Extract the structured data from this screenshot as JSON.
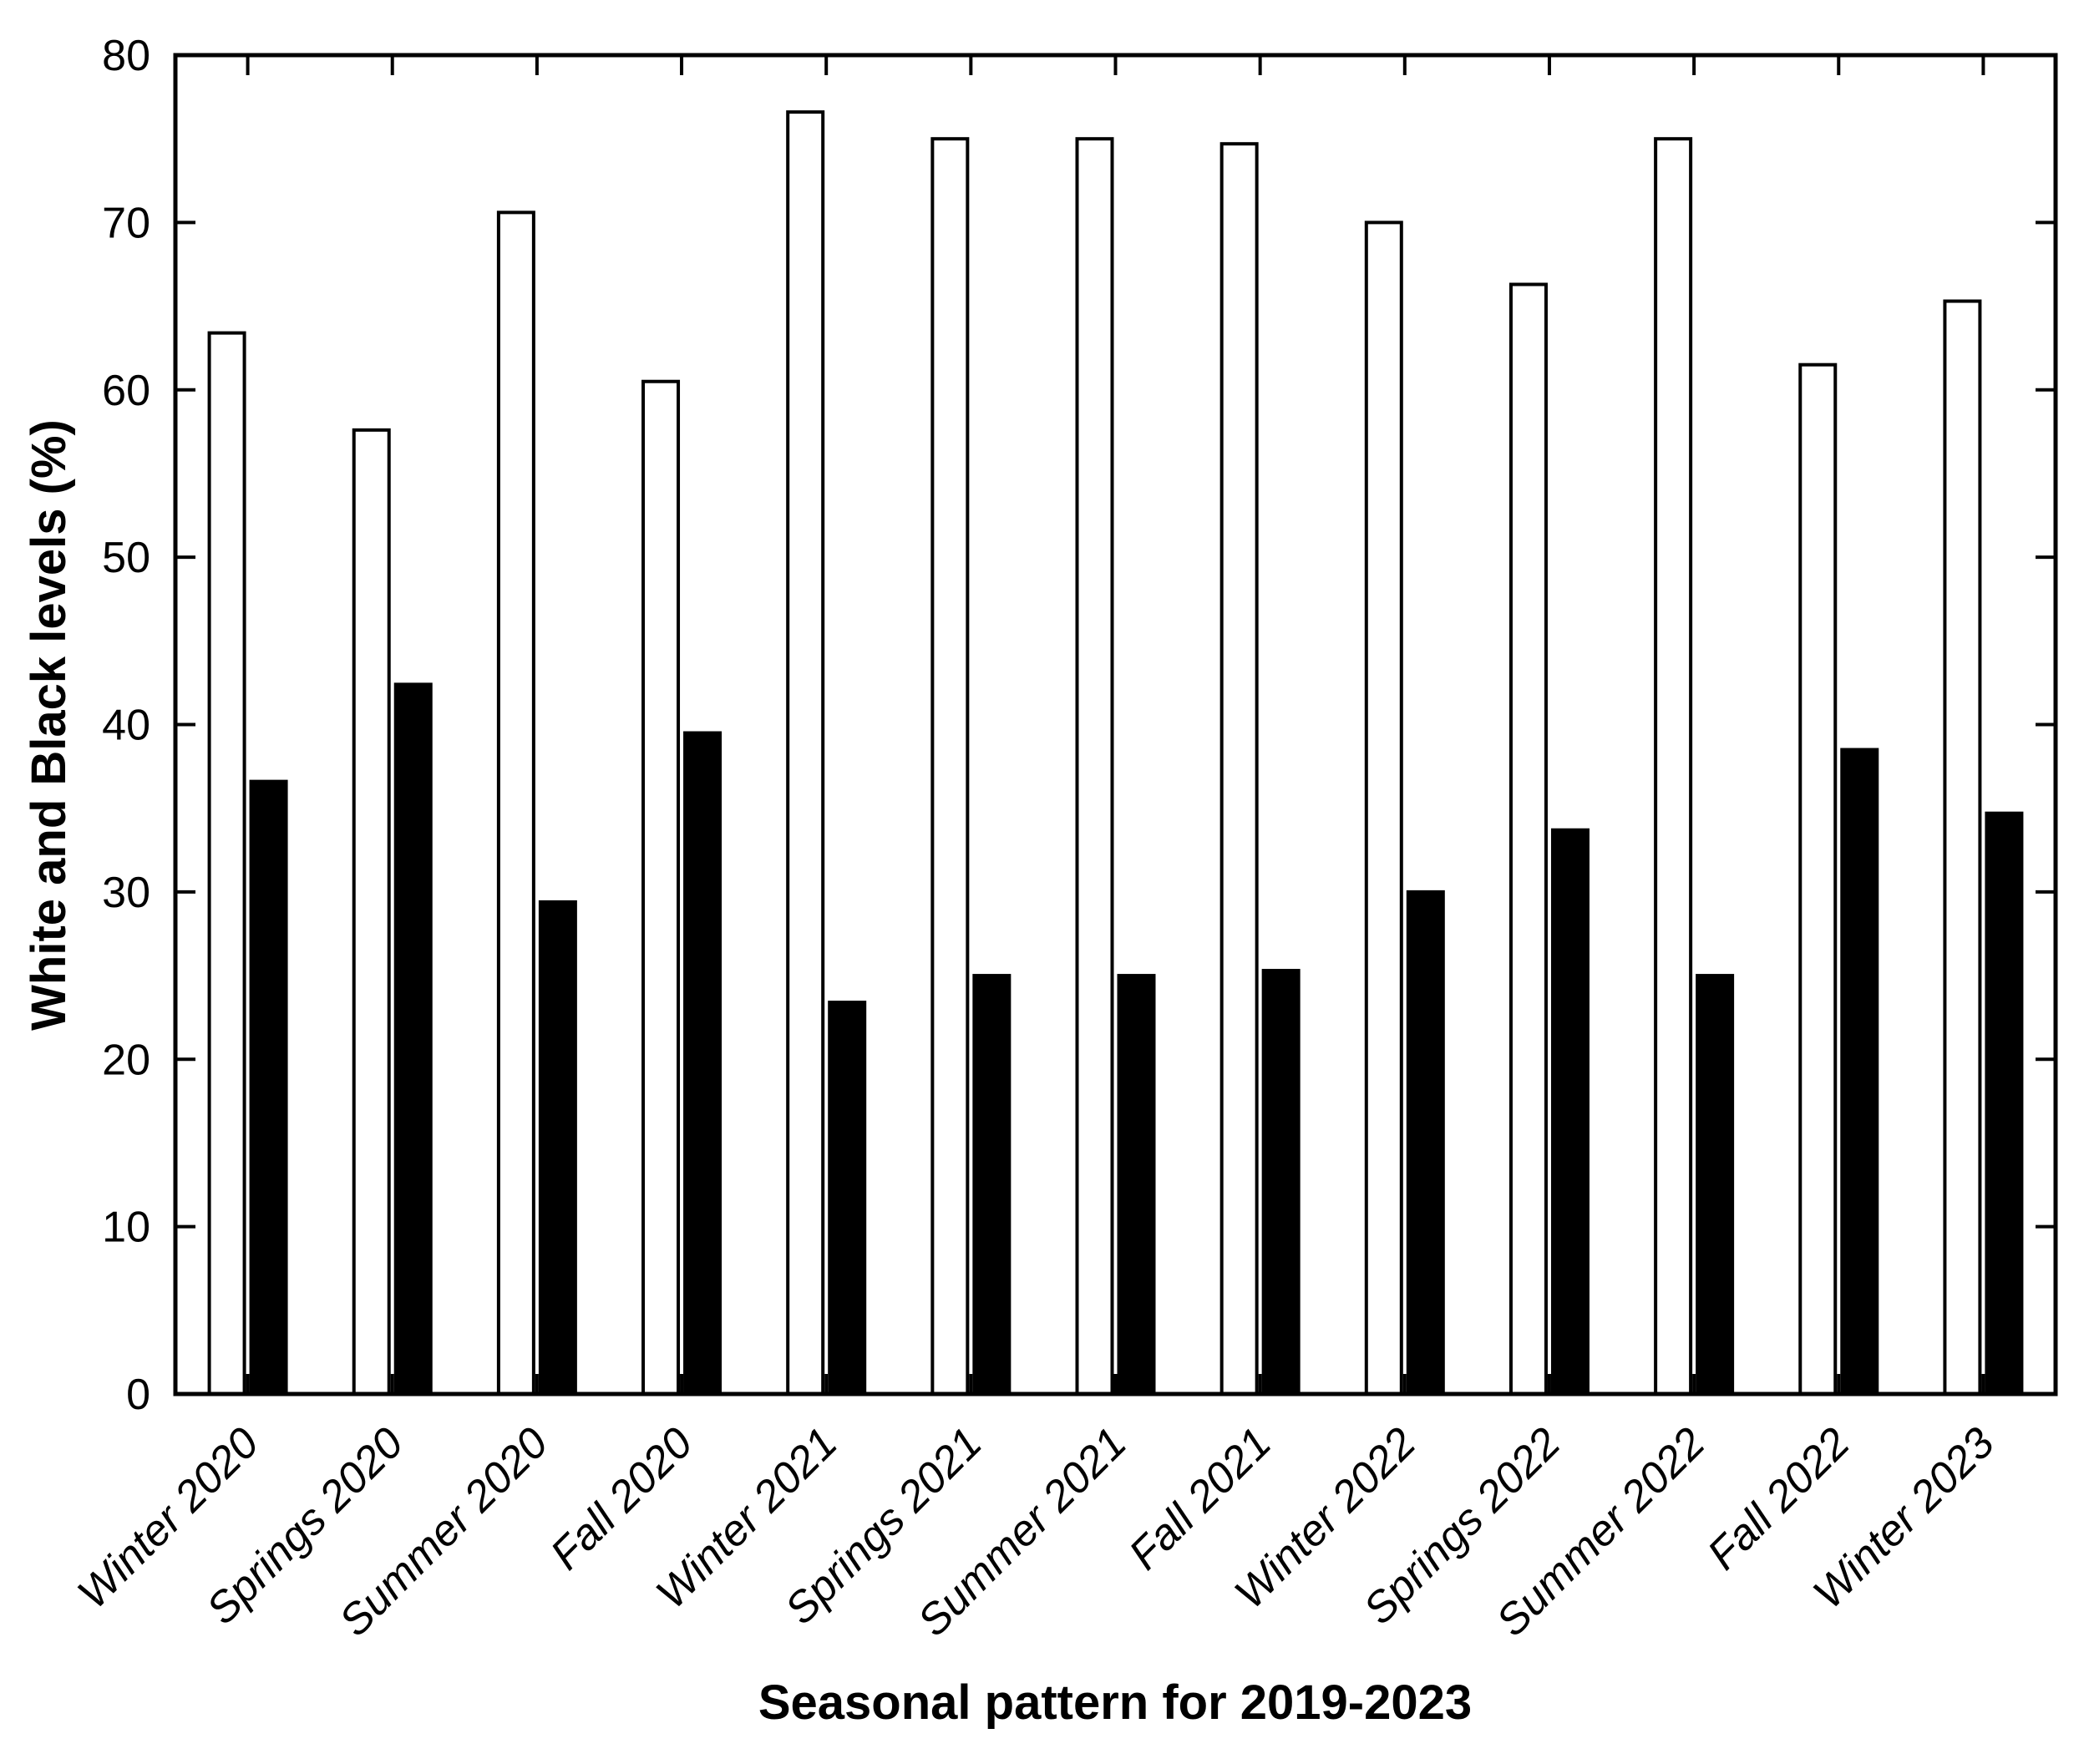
{
  "figure": {
    "background": "#ffffff",
    "ink_color": "#000000"
  },
  "chart_data": {
    "type": "bar",
    "title": "",
    "xlabel": "Seasonal pattern for 2019-2023",
    "ylabel": "White and Black levels (%)",
    "categories": [
      "Winter 2020",
      "Springs 2020",
      "Summer 2020",
      "Fall 2020",
      "Winter 2021",
      "Springs 2021",
      "Summer 2021",
      "Fall 2021",
      "Winter 2022",
      "Springs 2022",
      "Summer 2022",
      "Fall 2022",
      "Winter 2023"
    ],
    "series": [
      {
        "name": "White",
        "fill": "#ffffff",
        "stroke": "#000000",
        "values": [
          63.4,
          57.6,
          70.6,
          60.5,
          76.6,
          75.0,
          75.0,
          74.7,
          70.0,
          66.3,
          75.0,
          61.5,
          65.3
        ]
      },
      {
        "name": "Black",
        "fill": "#000000",
        "stroke": "#000000",
        "values": [
          36.6,
          42.4,
          29.4,
          39.5,
          23.4,
          25.0,
          25.0,
          25.3,
          30.0,
          33.7,
          25.0,
          38.5,
          34.7
        ]
      }
    ],
    "ylim": [
      0,
      80
    ],
    "yticks": [
      0,
      10,
      20,
      30,
      40,
      50,
      60,
      70,
      80
    ],
    "grid": false,
    "legend_position": "none",
    "box": true,
    "tick_direction": "in",
    "x_tick_rotation_deg": 45,
    "x_tick_style": "italic",
    "bar_group_layout": "paired"
  }
}
